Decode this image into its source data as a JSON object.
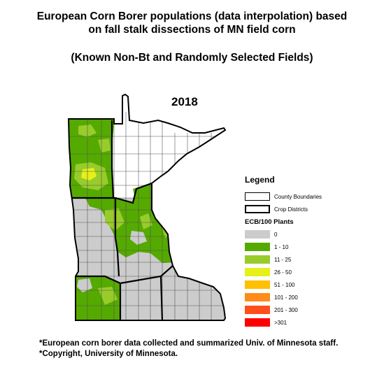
{
  "title_line1": "European Corn Borer populations (data interpolation) based",
  "title_line2": "on fall stalk dissections of MN field corn",
  "subtitle": "(Known Non-Bt and Randomly Selected Fields)",
  "year": "2018",
  "legend": {
    "title": "Legend",
    "county_boundaries": "County Boundaries",
    "crop_districts": "Crop Districts",
    "scale_title": "ECB/100 Plants",
    "classes": [
      {
        "label": "0",
        "color": "#cccccc"
      },
      {
        "label": "1 - 10",
        "color": "#55aa00"
      },
      {
        "label": "11 - 25",
        "color": "#98cc2a"
      },
      {
        "label": "26 - 50",
        "color": "#e6f019"
      },
      {
        "label": "51 - 100",
        "color": "#ffc000"
      },
      {
        "label": "101 - 200",
        "color": "#ff8c1a"
      },
      {
        "label": "201 - 300",
        "color": "#ff4f1a"
      },
      {
        "label": ">301",
        "color": "#ff0000"
      }
    ]
  },
  "footnotes": {
    "line1": "*European corn borer data collected and summarized Univ. of Minnesota staff.",
    "line2": "*Copyright, University of Minnesota."
  }
}
